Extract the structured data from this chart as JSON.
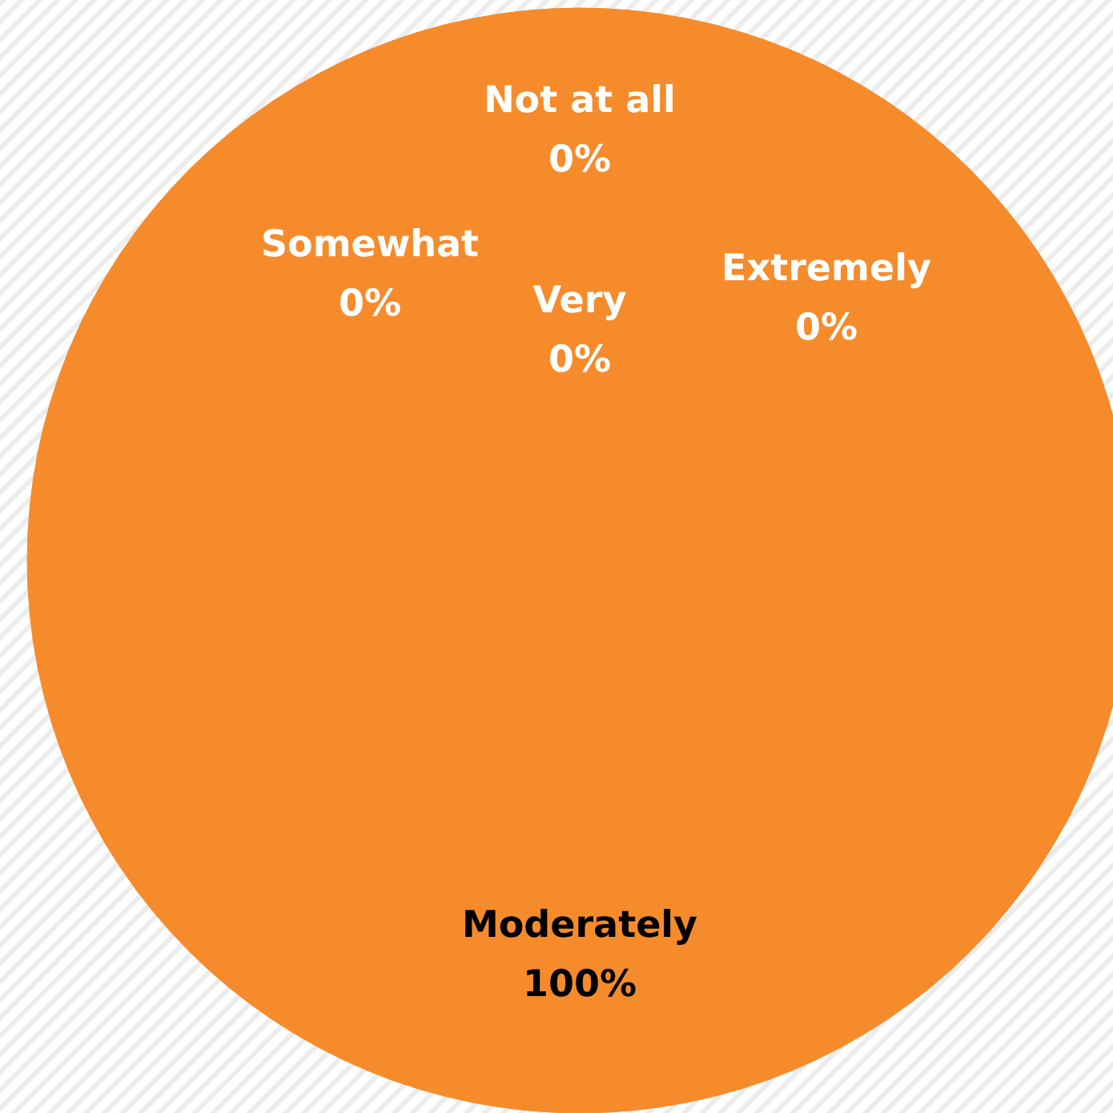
{
  "chart_data": {
    "type": "pie",
    "categories": [
      "Not at all",
      "Somewhat",
      "Moderately",
      "Very",
      "Extremely"
    ],
    "values": [
      0,
      0,
      100,
      0,
      0
    ],
    "colors": [
      "#f68b2c",
      "#f68b2c",
      "#f68b2c",
      "#f68b2c",
      "#f68b2c"
    ],
    "value_labels": [
      "0%",
      "0%",
      "100%",
      "0%",
      "0%"
    ]
  }
}
